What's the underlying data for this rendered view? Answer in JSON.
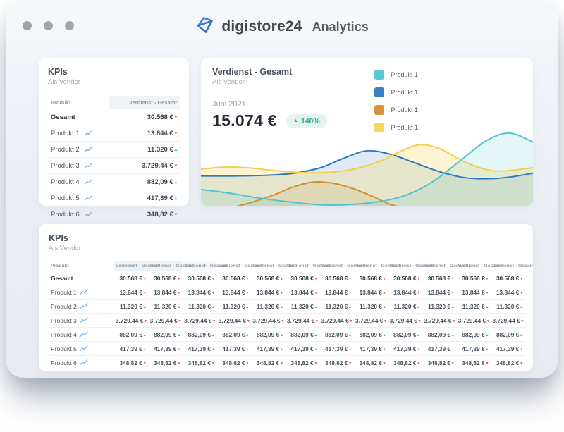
{
  "titlebar": {
    "brand": "digistore24",
    "app": "Analytics"
  },
  "kpi_card": {
    "title": "KPIs",
    "subtitle": "Als Vendor",
    "col_product": "Produkt",
    "col_value": "Verdienst - Gesamt"
  },
  "chart_card": {
    "title": "Verdienst - Gesamt",
    "subtitle": "Als Vendor",
    "period": "Juni 2021",
    "amount": "15.074 €",
    "delta": "140%",
    "delta_direction": "up",
    "delta_colors": {
      "bg": "#e3f4ee",
      "text": "#2aa78c"
    },
    "legend": [
      {
        "label": "Produkt 1",
        "color": "#58c8d4"
      },
      {
        "label": "Produkt 1",
        "color": "#377fc6"
      },
      {
        "label": "Produkt 1",
        "color": "#d6943e"
      },
      {
        "label": "Produkt 1",
        "color": "#f6d65c"
      }
    ]
  },
  "table_rows": [
    {
      "label": "Gesamt",
      "value": "30.568 €",
      "bold": true,
      "sparkline": false,
      "trend": "red"
    },
    {
      "label": "Produkt 1",
      "value": "13.844 €",
      "bold": false,
      "sparkline": true,
      "trend": "red"
    },
    {
      "label": "Produkt 2",
      "value": "11.320 €",
      "bold": false,
      "sparkline": true,
      "trend": "teal"
    },
    {
      "label": "Produkt 3",
      "value": "3.729,44 €",
      "bold": false,
      "sparkline": true,
      "trend": "red"
    },
    {
      "label": "Produkt 4",
      "value": "882,09 €",
      "bold": false,
      "sparkline": true,
      "trend": "teal"
    },
    {
      "label": "Produkt 5",
      "value": "417,39 €",
      "bold": false,
      "sparkline": true,
      "trend": "teal"
    },
    {
      "label": "Produkt 6",
      "value": "348,82 €",
      "bold": false,
      "sparkline": true,
      "trend": "red"
    }
  ],
  "wide_card": {
    "title": "KPIs",
    "subtitle": "Als Vendor",
    "col_product": "Produkt",
    "value_col_header": "Verdienst - Gesamt",
    "value_col_count": 12
  },
  "chart_data": {
    "type": "area",
    "title": "Verdienst - Gesamt",
    "x_axis": "hidden",
    "y_axis": "hidden",
    "note": "decorative smoothed area chart, values normalized 0-100 relative height",
    "series": [
      {
        "name": "Produkt 1 (orange)",
        "color": "#d08f35",
        "fill": "rgba(214,148,62,0.18)",
        "points": [
          [
            10,
            -6
          ],
          [
            16,
            2
          ],
          [
            22,
            12
          ],
          [
            28,
            24
          ],
          [
            34,
            31
          ],
          [
            40,
            29
          ],
          [
            46,
            21
          ],
          [
            52,
            9
          ],
          [
            57,
            -2
          ],
          [
            62,
            -8
          ]
        ]
      },
      {
        "name": "Produkt 1 (blue)",
        "color": "#2f78c0",
        "fill": "rgba(55,127,198,0.16)",
        "points": [
          [
            0,
            40
          ],
          [
            10,
            40
          ],
          [
            20,
            41
          ],
          [
            28,
            44
          ],
          [
            36,
            52
          ],
          [
            43,
            66
          ],
          [
            50,
            77
          ],
          [
            57,
            72
          ],
          [
            64,
            60
          ],
          [
            72,
            46
          ],
          [
            80,
            37
          ],
          [
            88,
            36
          ],
          [
            94,
            39
          ],
          [
            100,
            44
          ]
        ]
      },
      {
        "name": "Produkt 1 (yellow)",
        "color": "#f2ce4b",
        "fill": "rgba(246,214,92,0.28)",
        "points": [
          [
            0,
            50
          ],
          [
            7,
            53
          ],
          [
            14,
            52
          ],
          [
            22,
            48
          ],
          [
            30,
            45
          ],
          [
            38,
            45
          ],
          [
            46,
            50
          ],
          [
            54,
            62
          ],
          [
            60,
            76
          ],
          [
            66,
            86
          ],
          [
            72,
            80
          ],
          [
            78,
            64
          ],
          [
            84,
            52
          ],
          [
            90,
            47
          ],
          [
            100,
            52
          ]
        ]
      },
      {
        "name": "Produkt 1 (teal)",
        "color": "#4fc4d2",
        "fill": "rgba(88,200,212,0.16)",
        "points": [
          [
            0,
            20
          ],
          [
            8,
            15
          ],
          [
            18,
            7
          ],
          [
            28,
            1
          ],
          [
            38,
            -3
          ],
          [
            48,
            -1
          ],
          [
            56,
            4
          ],
          [
            63,
            14
          ],
          [
            70,
            32
          ],
          [
            78,
            62
          ],
          [
            86,
            92
          ],
          [
            93,
            103
          ],
          [
            100,
            90
          ]
        ]
      }
    ]
  },
  "icons": {
    "sparkline_color": "#7fb1e3",
    "logo_color": "#3b7cc4",
    "dot_color": "#9ca6af"
  }
}
